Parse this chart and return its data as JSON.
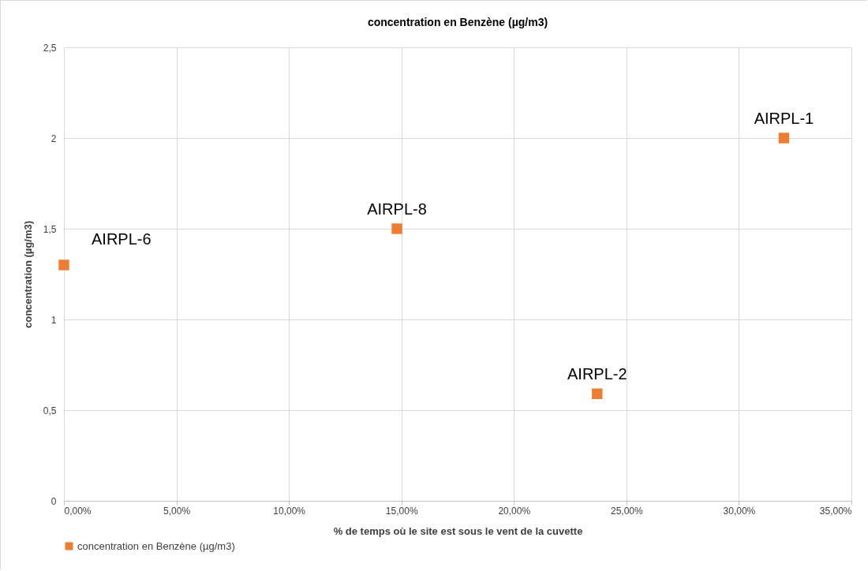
{
  "chart_data": {
    "type": "scatter",
    "title": "concentration en Benzène (µg/m3)",
    "xlabel": "% de temps  où le site est sous le vent de la cuvette",
    "ylabel": "concentration (µg/m3)",
    "x": [
      0,
      14.8,
      23.7,
      32
    ],
    "series": [
      {
        "name": "concentration en Benzène (µg/m3)",
        "color": "#ed7d31",
        "values": [
          1.3,
          1.5,
          0.59,
          2
        ]
      }
    ],
    "annotations": [
      {
        "text": "AIRPL-6",
        "x": 0,
        "y": 1.3
      },
      {
        "text": "AIRPL-8",
        "x": 14.8,
        "y": 1.5
      },
      {
        "text": "AIRPL-2",
        "x": 23.7,
        "y": 0.59
      },
      {
        "text": "AIRPL-1",
        "x": 32,
        "y": 2
      }
    ],
    "xlim": [
      0,
      35
    ],
    "xticks": [
      {
        "value": 0,
        "label": "0,00%"
      },
      {
        "value": 5,
        "label": "5,00%"
      },
      {
        "value": 10,
        "label": "10,00%"
      },
      {
        "value": 15,
        "label": "15,00%"
      },
      {
        "value": 20,
        "label": "20,00%"
      },
      {
        "value": 25,
        "label": "25,00%"
      },
      {
        "value": 30,
        "label": "30,00%"
      },
      {
        "value": 35,
        "label": "35,00%"
      }
    ],
    "ylim": [
      0,
      2.5
    ],
    "yticks": [
      0,
      {
        "value": 0.5,
        "label": "0,5"
      },
      1,
      {
        "value": 1.5,
        "label": "1,5"
      },
      2,
      {
        "value": 2.5,
        "label": "2,5"
      }
    ],
    "grid": true,
    "legend": "bottom",
    "marker": "square"
  }
}
